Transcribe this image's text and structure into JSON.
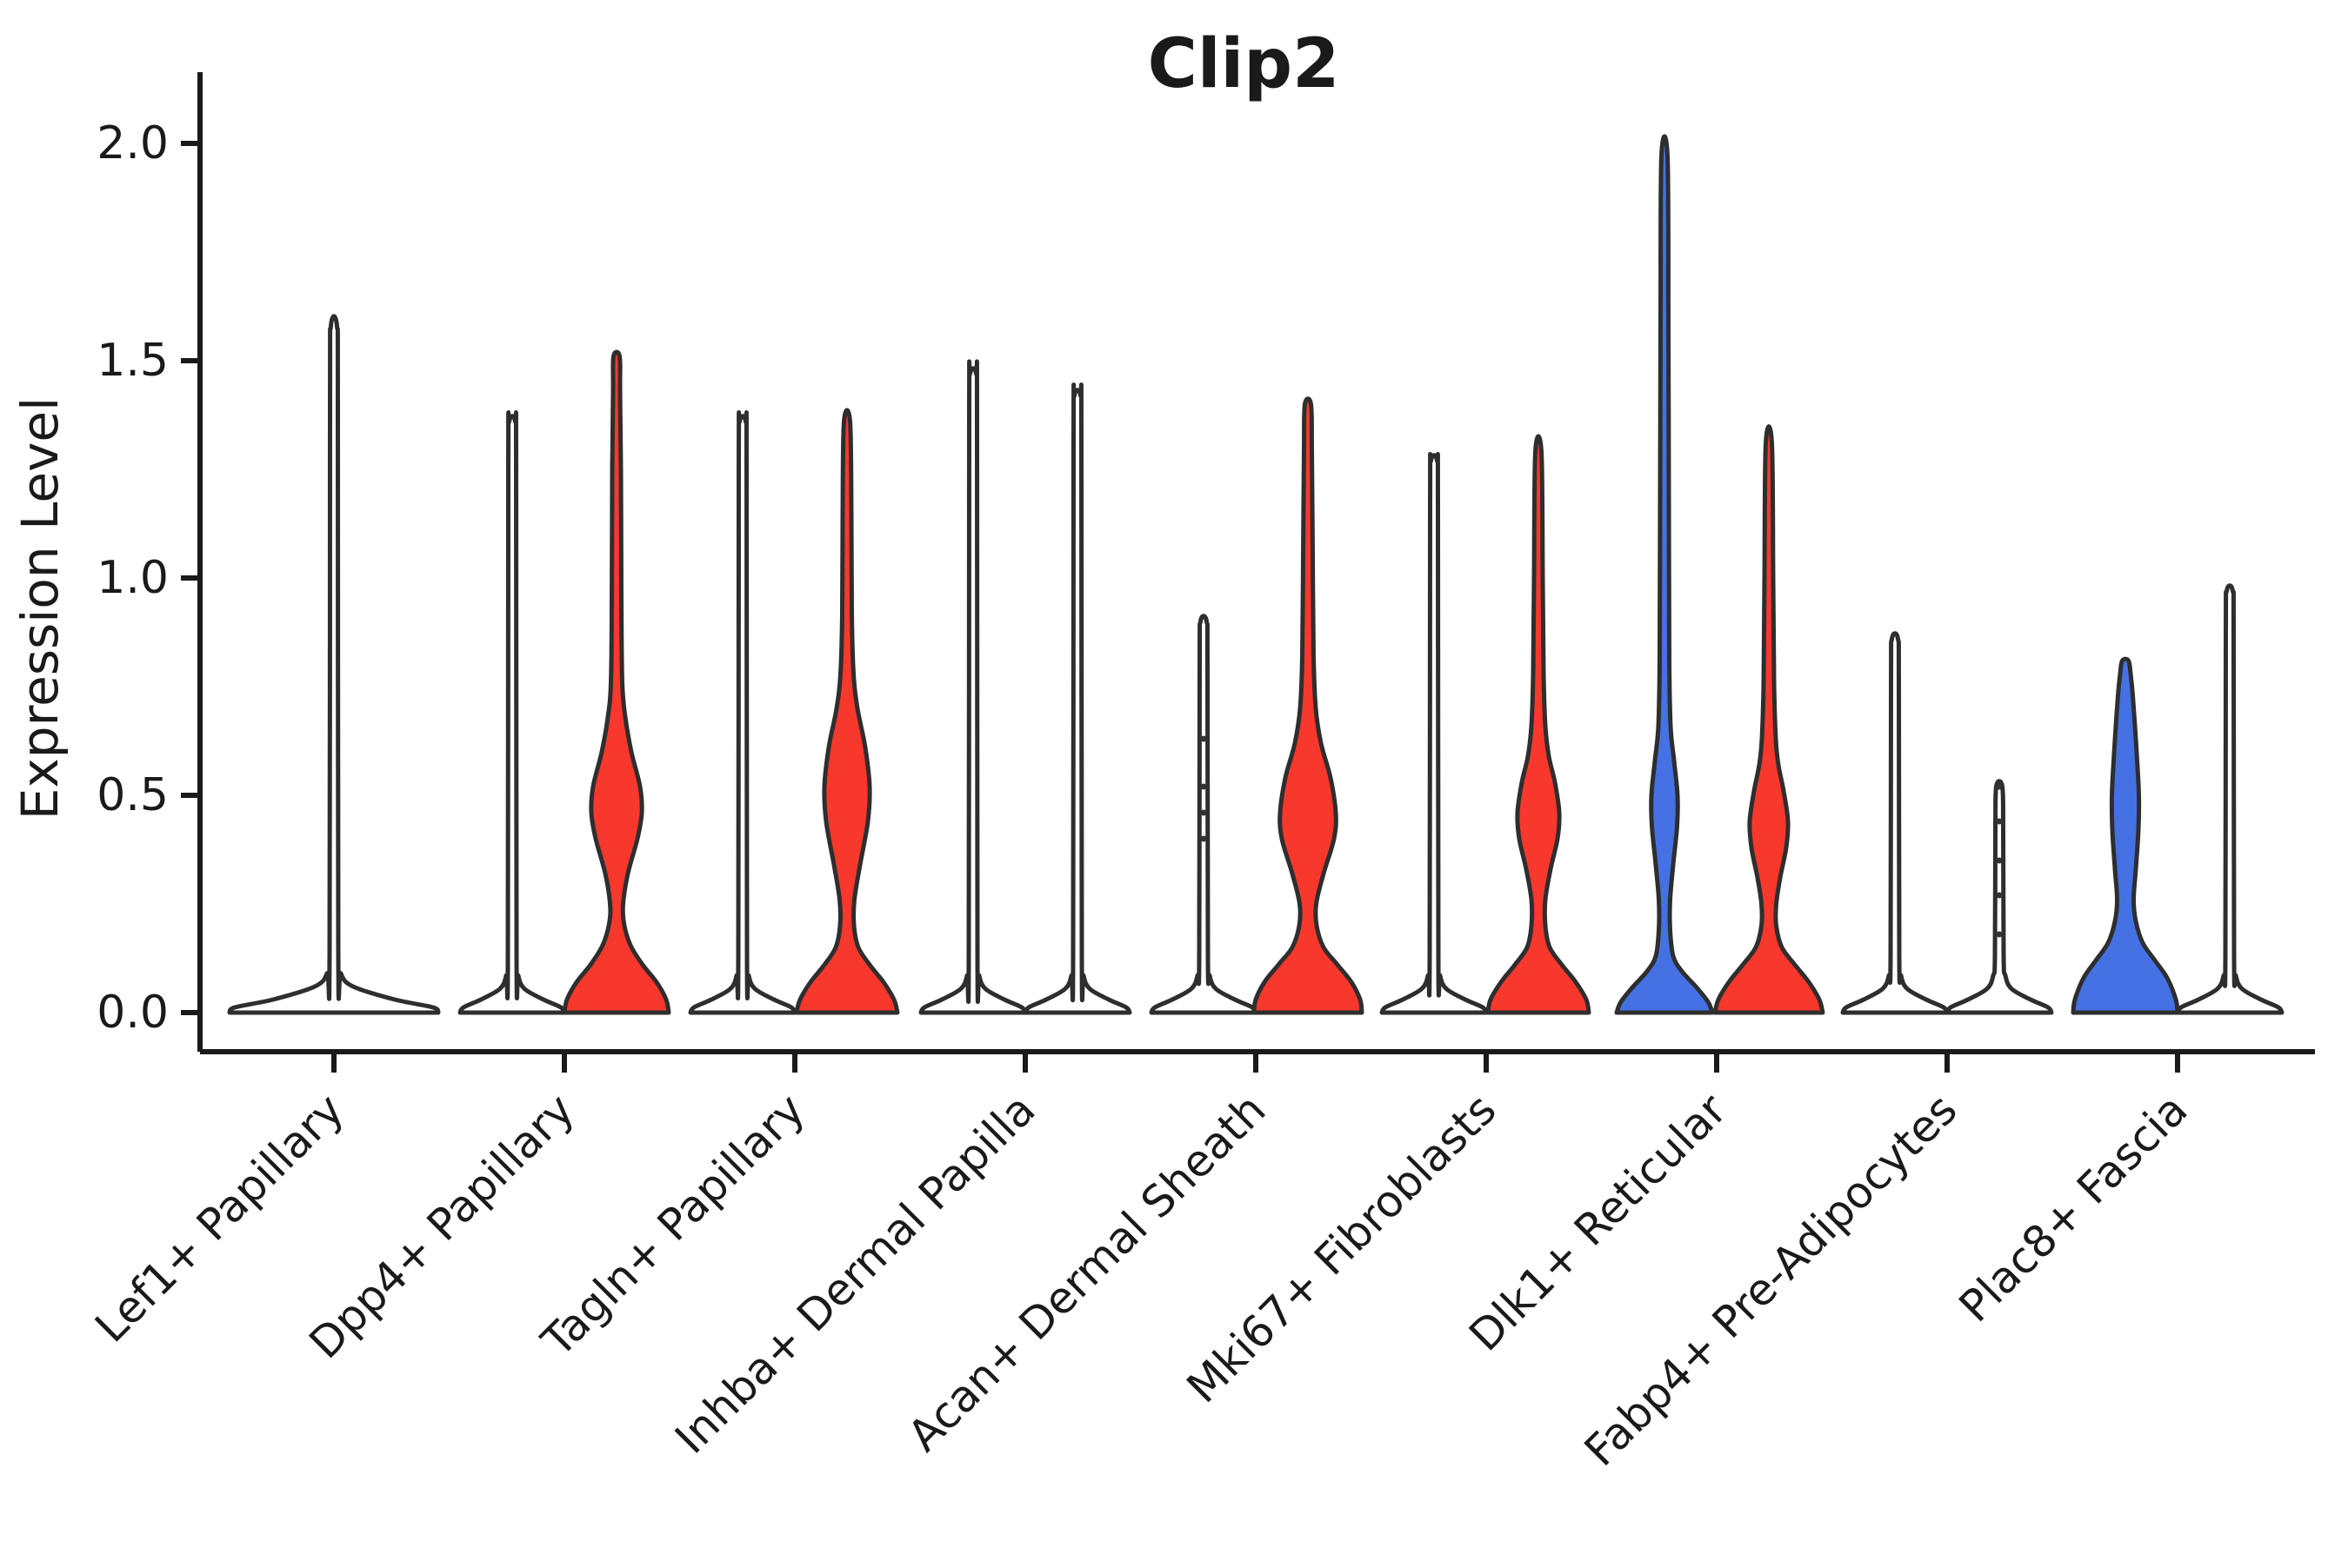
{
  "title": "Clip2",
  "axes": {
    "ylabel": "Expression Level",
    "ytick_labels": [
      "0.0",
      "0.5",
      "1.0",
      "1.5",
      "2.0"
    ]
  },
  "chart_data": {
    "type": "violin",
    "title": "Clip2",
    "xlabel": "",
    "ylabel": "Expression Level",
    "ylim": [
      -0.09,
      2.16
    ],
    "yticks": [
      0.0,
      0.5,
      1.0,
      1.5,
      2.0
    ],
    "grid": false,
    "legend": "none",
    "colors": {
      "red": "#f8382d",
      "blue": "#4472e4",
      "outline": "#2e2e2e",
      "plain": "#ffffff",
      "axis": "#1a1a1a"
    },
    "categories": [
      "Lef1+ Papillary",
      "Dpp4+ Papillary",
      "Tagln+ Papillary",
      "Inhba+ Dermal Papilla",
      "Acan+ Dermal Sheath",
      "Mki67+ Fibroblasts",
      "Dlk1+ Reticular",
      "Fabp4+ Pre-Adipocytes",
      "Plac8+ Fascia"
    ],
    "violins": [
      {
        "category_index": 0,
        "category": "Lef1+ Papillary",
        "slot": "center",
        "fill": "plain",
        "max_expression": 1.58,
        "profile": [
          [
            0,
            120
          ],
          [
            0.012,
            114
          ],
          [
            0.03,
            70
          ],
          [
            0.06,
            22
          ],
          [
            0.09,
            8
          ],
          [
            0.14,
            5
          ],
          [
            1.4,
            4.5
          ],
          [
            1.58,
            3.5
          ]
        ],
        "dots": []
      },
      {
        "category_index": 1,
        "category": "Dpp4+ Papillary",
        "slot": "left",
        "fill": "plain",
        "max_expression": 1.36,
        "profile": [
          [
            0,
            60
          ],
          [
            0.012,
            56
          ],
          [
            0.03,
            36
          ],
          [
            0.055,
            14
          ],
          [
            0.085,
            7
          ],
          [
            0.13,
            5
          ],
          [
            1.26,
            4.5
          ],
          [
            1.36,
            3.5
          ]
        ],
        "dots": []
      },
      {
        "category_index": 1,
        "category": "Dpp4+ Papillary",
        "slot": "right",
        "fill": "red",
        "max_expression": 1.51,
        "profile": [
          [
            0,
            60
          ],
          [
            0.03,
            57
          ],
          [
            0.07,
            46
          ],
          [
            0.11,
            30
          ],
          [
            0.155,
            16
          ],
          [
            0.205,
            8.5
          ],
          [
            0.25,
            7.5
          ],
          [
            0.32,
            13
          ],
          [
            0.4,
            24
          ],
          [
            0.46,
            29
          ],
          [
            0.52,
            27
          ],
          [
            0.6,
            17
          ],
          [
            0.68,
            10
          ],
          [
            0.76,
            6.5
          ],
          [
            0.95,
            5.5
          ],
          [
            1.25,
            5
          ],
          [
            1.43,
            4
          ],
          [
            1.51,
            3.5
          ]
        ],
        "dots": []
      },
      {
        "category_index": 2,
        "category": "Tagln+ Papillary",
        "slot": "left",
        "fill": "plain",
        "max_expression": 1.36,
        "profile": [
          [
            0,
            60
          ],
          [
            0.012,
            56
          ],
          [
            0.03,
            36
          ],
          [
            0.055,
            14
          ],
          [
            0.085,
            7
          ],
          [
            0.13,
            5
          ],
          [
            1.26,
            4.5
          ],
          [
            1.36,
            3.5
          ]
        ],
        "dots": []
      },
      {
        "category_index": 2,
        "category": "Tagln+ Papillary",
        "slot": "right",
        "fill": "red",
        "max_expression": 1.36,
        "profile": [
          [
            0,
            58
          ],
          [
            0.03,
            54
          ],
          [
            0.07,
            42
          ],
          [
            0.11,
            26
          ],
          [
            0.15,
            13
          ],
          [
            0.2,
            8
          ],
          [
            0.26,
            8.5
          ],
          [
            0.34,
            15
          ],
          [
            0.44,
            24
          ],
          [
            0.52,
            26
          ],
          [
            0.61,
            21
          ],
          [
            0.7,
            12
          ],
          [
            0.78,
            7.5
          ],
          [
            0.92,
            5.5
          ],
          [
            1.15,
            5
          ],
          [
            1.36,
            3.5
          ]
        ],
        "dots": []
      },
      {
        "category_index": 3,
        "category": "Inhba+ Dermal Papilla",
        "slot": "left",
        "fill": "plain",
        "max_expression": 1.47,
        "profile": [
          [
            0,
            60
          ],
          [
            0.012,
            56
          ],
          [
            0.03,
            36
          ],
          [
            0.055,
            14
          ],
          [
            0.085,
            7
          ],
          [
            0.13,
            5
          ],
          [
            1.37,
            4.5
          ],
          [
            1.47,
            3.5
          ]
        ],
        "dots": []
      },
      {
        "category_index": 3,
        "category": "Inhba+ Dermal Papilla",
        "slot": "right",
        "fill": "plain",
        "max_expression": 1.42,
        "profile": [
          [
            0,
            60
          ],
          [
            0.012,
            56
          ],
          [
            0.03,
            36
          ],
          [
            0.055,
            14
          ],
          [
            0.085,
            7
          ],
          [
            0.13,
            5
          ],
          [
            1.32,
            4.5
          ],
          [
            1.42,
            3.5
          ]
        ],
        "dots": []
      },
      {
        "category_index": 4,
        "category": "Acan+ Dermal Sheath",
        "slot": "left",
        "fill": "plain",
        "max_expression": 0.9,
        "profile": [
          [
            0,
            60
          ],
          [
            0.012,
            56
          ],
          [
            0.03,
            36
          ],
          [
            0.055,
            14
          ],
          [
            0.085,
            7
          ],
          [
            0.13,
            5
          ],
          [
            0.8,
            4.5
          ],
          [
            0.9,
            3.5
          ]
        ],
        "dots": [
          0.63,
          0.52,
          0.46,
          0.4
        ]
      },
      {
        "category_index": 4,
        "category": "Acan+ Dermal Sheath",
        "slot": "right",
        "fill": "red",
        "max_expression": 1.4,
        "profile": [
          [
            0,
            62
          ],
          [
            0.03,
            60
          ],
          [
            0.07,
            50
          ],
          [
            0.11,
            34
          ],
          [
            0.15,
            18
          ],
          [
            0.2,
            10
          ],
          [
            0.25,
            9.5
          ],
          [
            0.32,
            18
          ],
          [
            0.4,
            30
          ],
          [
            0.46,
            32
          ],
          [
            0.54,
            26
          ],
          [
            0.62,
            15
          ],
          [
            0.7,
            9
          ],
          [
            0.82,
            6.5
          ],
          [
            1.05,
            5.5
          ],
          [
            1.3,
            4.5
          ],
          [
            1.4,
            3.5
          ]
        ],
        "dots": []
      },
      {
        "category_index": 5,
        "category": "Mki67+ Fibroblasts",
        "slot": "left",
        "fill": "plain",
        "max_expression": 1.27,
        "profile": [
          [
            0,
            60
          ],
          [
            0.012,
            56
          ],
          [
            0.03,
            36
          ],
          [
            0.055,
            14
          ],
          [
            0.085,
            7
          ],
          [
            0.13,
            5
          ],
          [
            1.17,
            4.5
          ],
          [
            1.27,
            3.5
          ]
        ],
        "dots": []
      },
      {
        "category_index": 5,
        "category": "Mki67+ Fibroblasts",
        "slot": "right",
        "fill": "red",
        "max_expression": 1.29,
        "profile": [
          [
            0,
            58
          ],
          [
            0.03,
            55
          ],
          [
            0.07,
            43
          ],
          [
            0.11,
            27
          ],
          [
            0.15,
            13
          ],
          [
            0.2,
            8
          ],
          [
            0.26,
            8
          ],
          [
            0.33,
            14
          ],
          [
            0.4,
            22
          ],
          [
            0.46,
            24
          ],
          [
            0.53,
            19
          ],
          [
            0.59,
            12
          ],
          [
            0.66,
            8
          ],
          [
            0.78,
            6
          ],
          [
            1.0,
            5
          ],
          [
            1.29,
            3.5
          ]
        ],
        "dots": []
      },
      {
        "category_index": 6,
        "category": "Dlk1+ Reticular",
        "slot": "left",
        "fill": "blue",
        "max_expression": 1.97,
        "profile": [
          [
            0,
            55
          ],
          [
            0.025,
            50
          ],
          [
            0.06,
            36
          ],
          [
            0.095,
            20
          ],
          [
            0.13,
            10
          ],
          [
            0.19,
            6.5
          ],
          [
            0.26,
            6.5
          ],
          [
            0.34,
            10
          ],
          [
            0.43,
            14.5
          ],
          [
            0.5,
            15
          ],
          [
            0.58,
            11
          ],
          [
            0.66,
            7
          ],
          [
            0.82,
            5.5
          ],
          [
            1.2,
            5
          ],
          [
            1.6,
            4.5
          ],
          [
            1.97,
            3.5
          ]
        ],
        "dots": []
      },
      {
        "category_index": 6,
        "category": "Dlk1+ Reticular",
        "slot": "right",
        "fill": "red",
        "max_expression": 1.31,
        "profile": [
          [
            0,
            62
          ],
          [
            0.03,
            58
          ],
          [
            0.07,
            46
          ],
          [
            0.11,
            30
          ],
          [
            0.15,
            15
          ],
          [
            0.2,
            8.5
          ],
          [
            0.25,
            8.5
          ],
          [
            0.31,
            13
          ],
          [
            0.38,
            20
          ],
          [
            0.44,
            22
          ],
          [
            0.51,
            17
          ],
          [
            0.57,
            11
          ],
          [
            0.63,
            8
          ],
          [
            0.76,
            6
          ],
          [
            1.0,
            5
          ],
          [
            1.31,
            3.5
          ]
        ],
        "dots": []
      },
      {
        "category_index": 7,
        "category": "Fabp4+ Pre-Adipocytes",
        "slot": "left",
        "fill": "plain",
        "max_expression": 0.86,
        "profile": [
          [
            0,
            60
          ],
          [
            0.012,
            56
          ],
          [
            0.03,
            36
          ],
          [
            0.055,
            14
          ],
          [
            0.085,
            7
          ],
          [
            0.13,
            5
          ],
          [
            0.76,
            4.5
          ],
          [
            0.86,
            3.5
          ]
        ],
        "dots": []
      },
      {
        "category_index": 7,
        "category": "Fabp4+ Pre-Adipocytes",
        "slot": "right",
        "fill": "plain",
        "max_expression": 0.52,
        "profile": [
          [
            0,
            60
          ],
          [
            0.012,
            56
          ],
          [
            0.03,
            36
          ],
          [
            0.055,
            14
          ],
          [
            0.085,
            7
          ],
          [
            0.13,
            5
          ],
          [
            0.42,
            4.5
          ],
          [
            0.52,
            3.5
          ]
        ],
        "dots": [
          0.52,
          0.44,
          0.35,
          0.27,
          0.18
        ]
      },
      {
        "category_index": 8,
        "category": "Plac8+ Fascia",
        "slot": "left",
        "fill": "blue",
        "max_expression": 0.81,
        "profile": [
          [
            0,
            60
          ],
          [
            0.03,
            58
          ],
          [
            0.08,
            48
          ],
          [
            0.12,
            34
          ],
          [
            0.16,
            20
          ],
          [
            0.21,
            12
          ],
          [
            0.26,
            9.5
          ],
          [
            0.33,
            12
          ],
          [
            0.42,
            15
          ],
          [
            0.5,
            15.5
          ],
          [
            0.58,
            13.5
          ],
          [
            0.66,
            11
          ],
          [
            0.73,
            8.5
          ],
          [
            0.78,
            6
          ],
          [
            0.81,
            3.5
          ]
        ],
        "dots": []
      },
      {
        "category_index": 8,
        "category": "Plac8+ Fascia",
        "slot": "right",
        "fill": "plain",
        "max_expression": 0.97,
        "profile": [
          [
            0,
            60
          ],
          [
            0.012,
            56
          ],
          [
            0.03,
            36
          ],
          [
            0.055,
            14
          ],
          [
            0.085,
            7
          ],
          [
            0.13,
            5
          ],
          [
            0.87,
            4.5
          ],
          [
            0.97,
            3.5
          ]
        ],
        "dots": []
      }
    ]
  }
}
